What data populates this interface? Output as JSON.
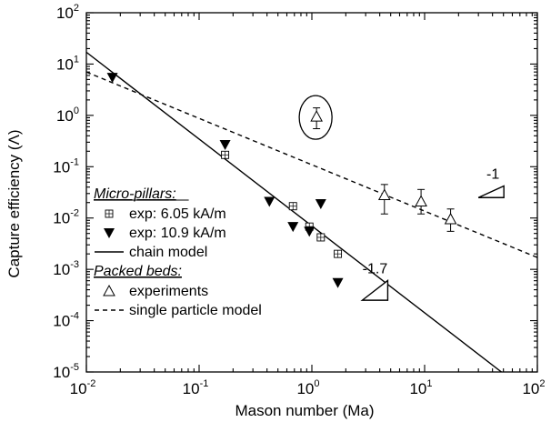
{
  "chart_data": {
    "type": "scatter",
    "xlabel": "Mason number (Ma)",
    "ylabel": "Capture efficiency (Λ)",
    "xscale": "log",
    "yscale": "log",
    "xlim": [
      0.01,
      100
    ],
    "ylim": [
      1e-05,
      100
    ],
    "x_ticks": [
      {
        "base": "10",
        "exp": "-2",
        "value": 0.01
      },
      {
        "base": "10",
        "exp": "-1",
        "value": 0.1
      },
      {
        "base": "10",
        "exp": "0",
        "value": 1
      },
      {
        "base": "10",
        "exp": "1",
        "value": 10
      },
      {
        "base": "10",
        "exp": "2",
        "value": 100
      }
    ],
    "y_ticks": [
      {
        "base": "10",
        "exp": "-5",
        "value": 1e-05
      },
      {
        "base": "10",
        "exp": "-4",
        "value": 0.0001
      },
      {
        "base": "10",
        "exp": "-3",
        "value": 0.001
      },
      {
        "base": "10",
        "exp": "-2",
        "value": 0.01
      },
      {
        "base": "10",
        "exp": "-1",
        "value": 0.1
      },
      {
        "base": "10",
        "exp": "0",
        "value": 1
      },
      {
        "base": "10",
        "exp": "1",
        "value": 10
      },
      {
        "base": "10",
        "exp": "2",
        "value": 100
      }
    ],
    "grid": false,
    "legend_placement": "bottom-left",
    "series": [
      {
        "name": "exp: 6.05 kA/m",
        "marker": "open-square",
        "group": "Micro-pillars",
        "points": [
          {
            "x": 0.17,
            "y": 0.17
          },
          {
            "x": 0.68,
            "y": 0.017
          },
          {
            "x": 0.95,
            "y": 0.0068
          },
          {
            "x": 1.2,
            "y": 0.0042
          },
          {
            "x": 1.7,
            "y": 0.002
          }
        ]
      },
      {
        "name": "exp: 10.9 kA/m",
        "marker": "filled-triangle-down",
        "group": "Micro-pillars",
        "points": [
          {
            "x": 0.017,
            "y": 5.5
          },
          {
            "x": 0.17,
            "y": 0.27
          },
          {
            "x": 0.42,
            "y": 0.021
          },
          {
            "x": 0.68,
            "y": 0.0068
          },
          {
            "x": 0.95,
            "y": 0.0055
          },
          {
            "x": 1.2,
            "y": 0.019
          },
          {
            "x": 1.7,
            "y": 0.00055
          }
        ]
      },
      {
        "name": "chain model",
        "line": "solid",
        "group": "Micro-pillars",
        "x": [
          0.01,
          48
        ],
        "y": [
          17,
          1e-05
        ]
      },
      {
        "name": "experiments",
        "marker": "open-triangle-up",
        "group": "Packed beds",
        "points": [
          {
            "x": 1.1,
            "y": 0.95,
            "ylow": 0.55,
            "yhigh": 1.4
          },
          {
            "x": 4.4,
            "y": 0.028,
            "ylow": 0.012,
            "yhigh": 0.045
          },
          {
            "x": 9.3,
            "y": 0.021,
            "ylow": 0.012,
            "yhigh": 0.036
          },
          {
            "x": 17,
            "y": 0.0095,
            "ylow": 0.0055,
            "yhigh": 0.015
          }
        ]
      },
      {
        "name": "single particle model",
        "line": "dashed",
        "group": "Packed beds",
        "x": [
          0.01,
          100
        ],
        "y": [
          7,
          0.0017
        ]
      }
    ],
    "legend": {
      "groups": [
        {
          "title": "Micro-pillars:",
          "entries": [
            {
              "label": "exp: 6.05 kA/m",
              "symbol": "open-square"
            },
            {
              "label": "exp: 10.9 kA/m",
              "symbol": "filled-triangle-down"
            },
            {
              "label": "chain model",
              "symbol": "solid-line"
            }
          ]
        },
        {
          "title": "Packed beds:",
          "entries": [
            {
              "label": "experiments",
              "symbol": "open-triangle-up"
            },
            {
              "label": "single particle model",
              "symbol": "dashed-line"
            }
          ]
        }
      ]
    },
    "annotations": [
      {
        "type": "slope-triangle",
        "label": "-1",
        "anchor_x": 30,
        "anchor_y": 0.025,
        "slope": -1
      },
      {
        "type": "slope-triangle",
        "label": "-1.7",
        "anchor_x": 2.8,
        "anchor_y": 0.00025,
        "slope": -1.7
      },
      {
        "type": "ellipse-highlight",
        "target_x": 1.1,
        "target_y": 0.95
      }
    ]
  }
}
